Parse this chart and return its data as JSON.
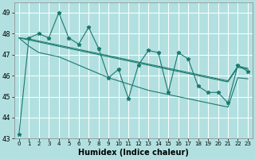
{
  "xlabel": "Humidex (Indice chaleur)",
  "bg_color": "#b2e0e0",
  "grid_color": "#ffffff",
  "line_color": "#1a7a6e",
  "xlim": [
    -0.5,
    23.5
  ],
  "ylim": [
    43,
    49.5
  ],
  "yticks": [
    43,
    44,
    45,
    46,
    47,
    48,
    49
  ],
  "xticks": [
    0,
    1,
    2,
    3,
    4,
    5,
    6,
    7,
    8,
    9,
    10,
    11,
    12,
    13,
    14,
    15,
    16,
    17,
    18,
    19,
    20,
    21,
    22,
    23
  ],
  "main_y": [
    43.2,
    47.8,
    48.0,
    47.8,
    49.0,
    47.8,
    47.5,
    48.3,
    47.3,
    45.9,
    46.3,
    44.9,
    46.5,
    47.2,
    47.1,
    45.2,
    47.1,
    46.8,
    45.5,
    45.2,
    45.2,
    44.7,
    46.5,
    46.2
  ],
  "smooth_y1": [
    47.8,
    47.75,
    47.65,
    47.55,
    47.45,
    47.35,
    47.25,
    47.15,
    47.05,
    46.95,
    46.85,
    46.75,
    46.65,
    46.55,
    46.45,
    46.35,
    46.25,
    46.15,
    46.05,
    45.95,
    45.85,
    45.75,
    46.45,
    46.35
  ],
  "smooth_y2": [
    47.8,
    47.7,
    47.6,
    47.5,
    47.4,
    47.3,
    47.2,
    47.1,
    47.0,
    46.9,
    46.8,
    46.7,
    46.6,
    46.5,
    46.4,
    46.3,
    46.2,
    46.1,
    46.0,
    45.9,
    45.8,
    45.7,
    46.4,
    46.3
  ],
  "trend_y": [
    47.8,
    47.4,
    47.1,
    47.0,
    46.9,
    46.7,
    46.5,
    46.3,
    46.1,
    45.9,
    45.75,
    45.6,
    45.45,
    45.3,
    45.2,
    45.1,
    45.0,
    44.9,
    44.8,
    44.7,
    44.6,
    44.5,
    45.9,
    45.85
  ],
  "xlabel_fontsize": 7,
  "ytick_fontsize": 6,
  "xtick_fontsize": 5
}
